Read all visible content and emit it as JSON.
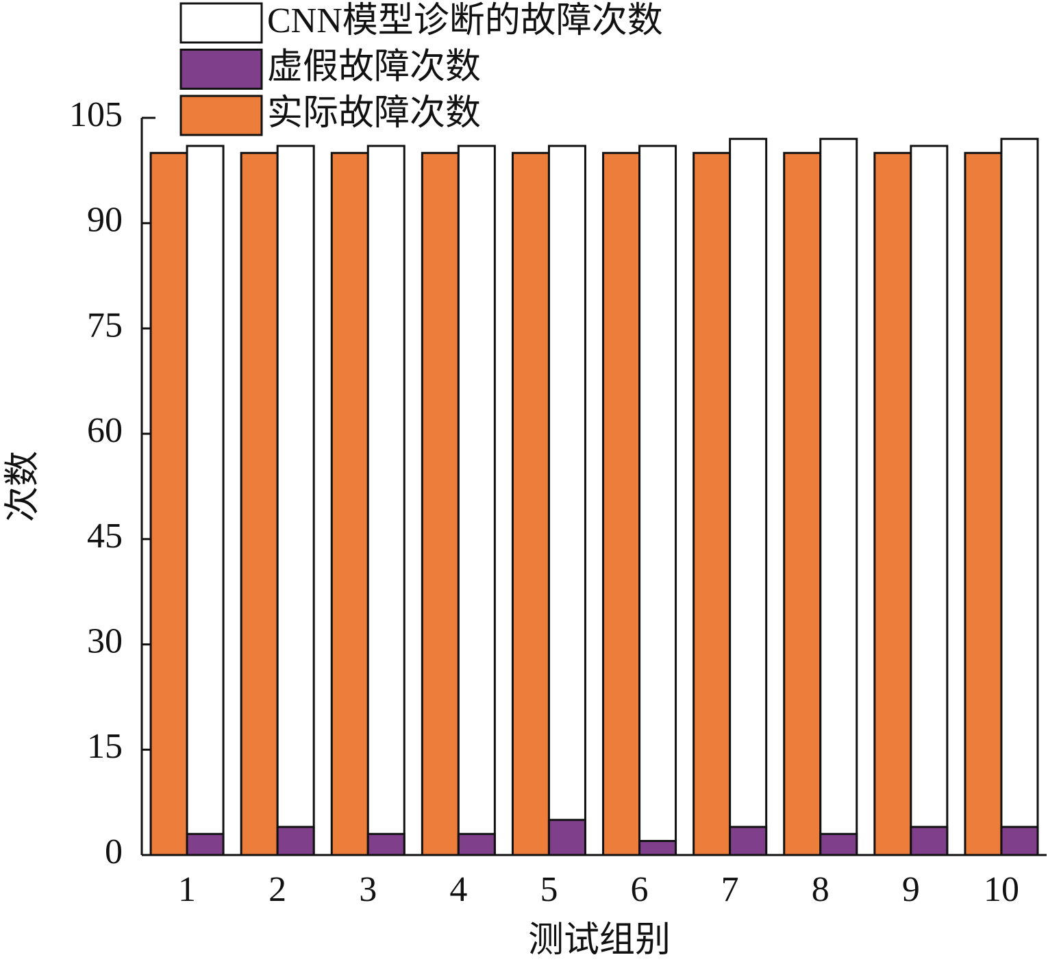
{
  "chart_data": {
    "type": "bar",
    "x_label": "测试组别",
    "y_label": "次数",
    "categories": [
      "1",
      "2",
      "3",
      "4",
      "5",
      "6",
      "7",
      "8",
      "9",
      "10"
    ],
    "series": [
      {
        "name": "CNN模型诊断的故障次数",
        "color": "#ffffff",
        "values": [
          101,
          101,
          101,
          101,
          101,
          101,
          102,
          102,
          101,
          102
        ]
      },
      {
        "name": "虚假故障次数",
        "color": "#7f3f8a",
        "values": [
          3,
          4,
          3,
          3,
          5,
          2,
          4,
          3,
          4,
          4
        ]
      },
      {
        "name": "实际故障次数",
        "color": "#ed7d3a",
        "values": [
          100,
          100,
          100,
          100,
          100,
          100,
          100,
          100,
          100,
          100
        ]
      }
    ],
    "ylim": [
      0,
      105
    ],
    "yticks": [
      0,
      15,
      30,
      45,
      60,
      75,
      90,
      105
    ],
    "grid": false,
    "legend": "top-left"
  }
}
